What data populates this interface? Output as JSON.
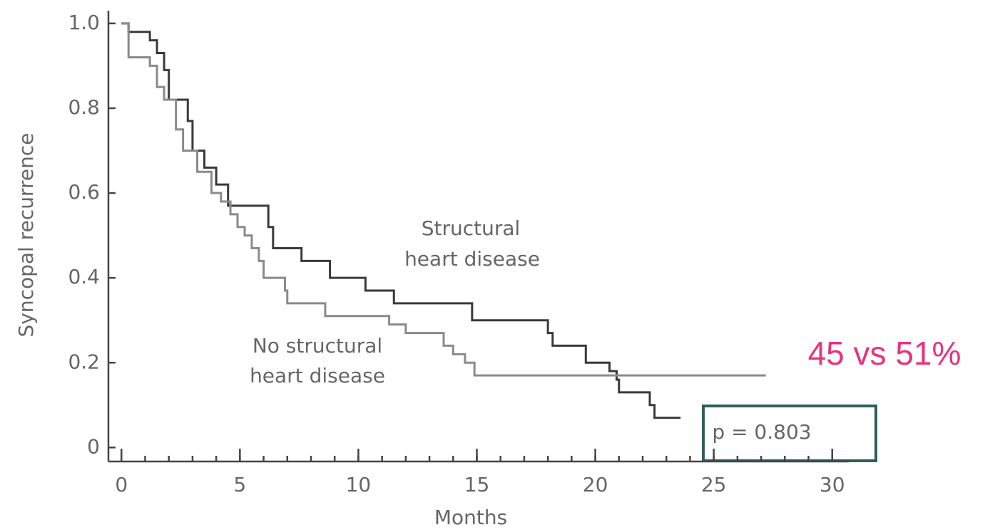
{
  "chart_data": {
    "type": "line",
    "step": true,
    "ylabel": "Syncopal recurrence",
    "xlabel": "Months",
    "xlim": [
      -0.55,
      30.7
    ],
    "ylim": [
      -0.033,
      1.03
    ],
    "xticks": [
      0,
      5,
      10,
      15,
      20,
      25,
      30
    ],
    "yticks": [
      {
        "value": 1,
        "label": "1.0"
      },
      0.8,
      0.6,
      0.4,
      0.2,
      0
    ],
    "series": [
      {
        "name": "Structural heart disease",
        "color": "#3a3a3a",
        "x": [
          0,
          0.3,
          1.2,
          1.5,
          1.8,
          2.0,
          2.8,
          3.0,
          3.5,
          4.0,
          4.5,
          6.2,
          6.4,
          7.6,
          8.8,
          10.3,
          11.5,
          14.8,
          18.0,
          18.2,
          19.6,
          20.6,
          20.9,
          21.0,
          22.3,
          22.5,
          23.6
        ],
        "values": [
          1.0,
          0.98,
          0.96,
          0.93,
          0.89,
          0.82,
          0.77,
          0.7,
          0.66,
          0.62,
          0.57,
          0.52,
          0.47,
          0.44,
          0.4,
          0.37,
          0.34,
          0.3,
          0.27,
          0.24,
          0.2,
          0.18,
          0.16,
          0.13,
          0.1,
          0.07,
          0.07
        ]
      },
      {
        "name": "No structural heart disease",
        "color": "#8a8a8a",
        "x": [
          0,
          0.3,
          1.2,
          1.5,
          1.8,
          2.3,
          2.6,
          3.2,
          3.8,
          4.2,
          4.6,
          4.9,
          5.2,
          5.5,
          5.8,
          6.0,
          6.9,
          7.0,
          8.6,
          11.3,
          12.0,
          13.6,
          14.0,
          14.5,
          14.9,
          27.2
        ],
        "values": [
          1.0,
          0.92,
          0.9,
          0.85,
          0.82,
          0.75,
          0.7,
          0.65,
          0.6,
          0.58,
          0.55,
          0.52,
          0.5,
          0.47,
          0.44,
          0.4,
          0.37,
          0.34,
          0.31,
          0.29,
          0.27,
          0.24,
          0.22,
          0.2,
          0.17,
          0.17
        ]
      }
    ],
    "annotations": {
      "structural": [
        "Structural",
        "heart disease"
      ],
      "nonstructural": [
        "No structural",
        "heart disease"
      ],
      "comparison": "45 vs 51%",
      "pvalue": "p = 0.803"
    }
  }
}
